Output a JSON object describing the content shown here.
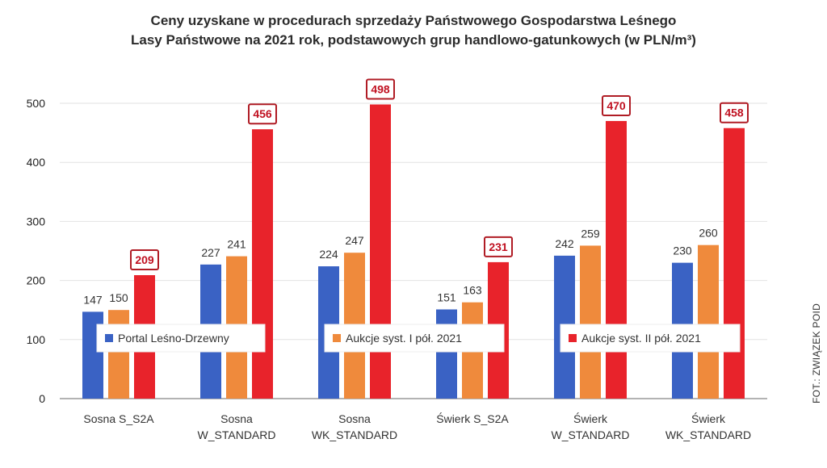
{
  "title_lines": [
    "Ceny uzyskane w procedurach sprzedaży Państwowego Gospodarstwa Leśnego",
    "Lasy Państwowe na 2021 rok, podstawowych grup handlowo-gatunkowych (w PLN/m³)"
  ],
  "credit": "FOT.: ZWIĄZEK POID",
  "chart_data": {
    "type": "bar",
    "title": "Ceny uzyskane w procedurach sprzedaży Państwowego Gospodarstwa Leśnego Lasy Państwowe na 2021 rok, podstawowych grup handlowo-gatunkowych (w PLN/m³)",
    "xlabel": "",
    "ylabel": "",
    "ylim": [
      0,
      500
    ],
    "yticks": [
      0,
      100,
      200,
      300,
      400,
      500
    ],
    "grid": true,
    "legend_position": "inside-middle",
    "categories": [
      [
        "Sosna S_S2A"
      ],
      [
        "Sosna",
        "W_STANDARD"
      ],
      [
        "Sosna",
        "WK_STANDARD"
      ],
      [
        "Świerk S_S2A"
      ],
      [
        "Świerk",
        "W_STANDARD"
      ],
      [
        "Świerk",
        "WK_STANDARD"
      ]
    ],
    "series": [
      {
        "name": "Portal Leśno-Drzewny",
        "color": "#3a62c4",
        "values": [
          147,
          227,
          224,
          151,
          242,
          230
        ],
        "boxed": false
      },
      {
        "name": "Aukcje syst. I pół. 2021",
        "color": "#ef8a3c",
        "values": [
          150,
          241,
          247,
          163,
          259,
          260
        ],
        "boxed": false
      },
      {
        "name": "Aukcje syst. II pół. 2021",
        "color": "#e8232b",
        "values": [
          209,
          456,
          498,
          231,
          470,
          458
        ],
        "boxed": true
      }
    ]
  }
}
